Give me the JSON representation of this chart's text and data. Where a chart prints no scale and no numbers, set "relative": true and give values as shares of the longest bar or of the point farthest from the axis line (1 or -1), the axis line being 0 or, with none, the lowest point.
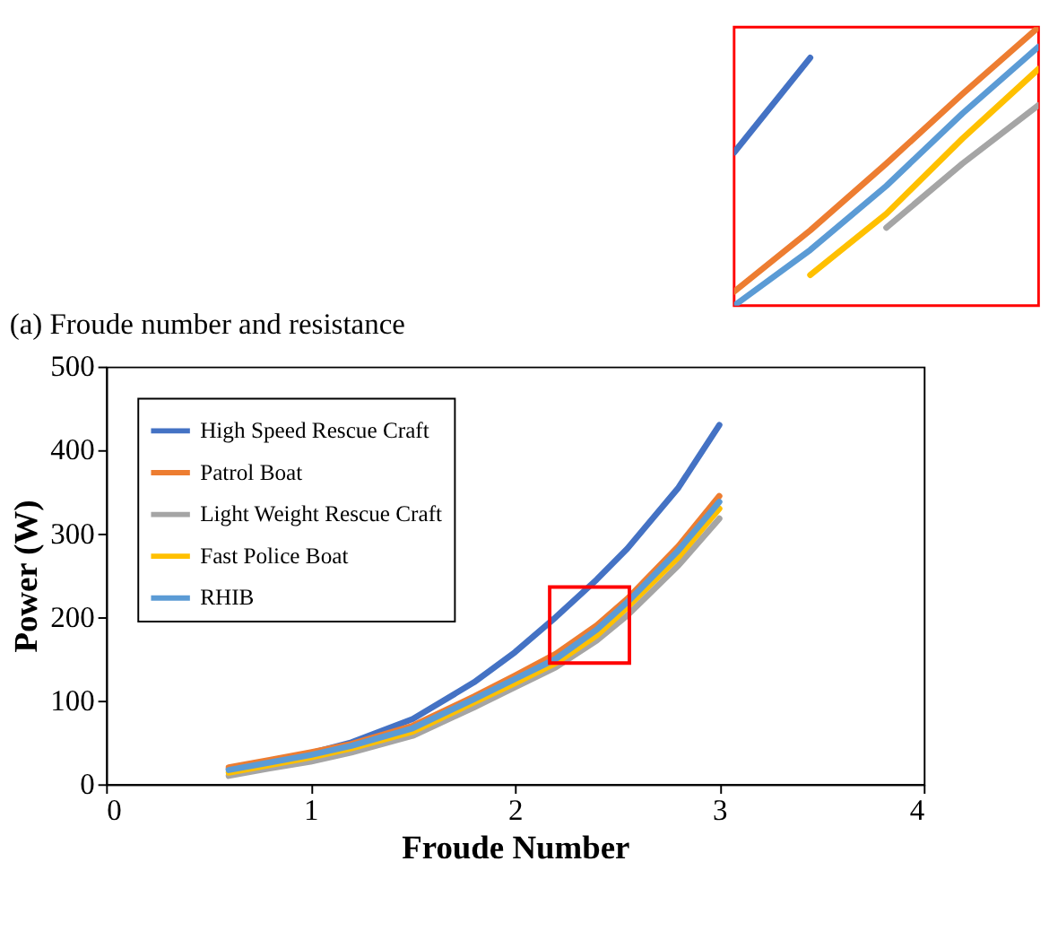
{
  "chart_data": [
    {
      "type": "line",
      "title": "(a) Froude number and resistance",
      "xlabel": "Froude Number",
      "ylabel": "Power (W)",
      "xlim": [
        0,
        4
      ],
      "xticks": [
        0,
        1,
        2,
        3,
        4
      ],
      "ylim": [
        0,
        500
      ],
      "yticks": [
        0,
        100,
        200,
        300,
        400,
        500
      ],
      "grid": false,
      "legend": "top left",
      "marker": "none",
      "line_style": "solid",
      "x": [
        0.6,
        0.8,
        1,
        1.2,
        1.5,
        1.8,
        2,
        2.2,
        2.4,
        2.55,
        2.8,
        3
      ],
      "series": [
        {
          "name": "High Speed Rescue Craft",
          "color": "#4472c4",
          "values": [
            18,
            27,
            37,
            50,
            78,
            122,
            158,
            200,
            245,
            282,
            355,
            430
          ]
        },
        {
          "name": "Patrol Boat",
          "color": "#ed7d31",
          "values": [
            20,
            29,
            38,
            48,
            70,
            105,
            130,
            156,
            190,
            222,
            285,
            345
          ]
        },
        {
          "name": "Light Weight Rescue Craft",
          "color": "#a5a5a5",
          "values": [
            10,
            19,
            27,
            38,
            58,
            92,
            116,
            140,
            172,
            202,
            262,
            318
          ]
        },
        {
          "name": "Fast Police Boat",
          "color": "#ffc000",
          "values": [
            14,
            23,
            32,
            43,
            63,
            98,
            121,
            145,
            178,
            212,
            272,
            330
          ]
        },
        {
          "name": "RHIB",
          "color": "#5b9bd5",
          "values": [
            17,
            26,
            35,
            46,
            67,
            102,
            126,
            150,
            185,
            218,
            280,
            338
          ]
        }
      ]
    },
    {
      "type": "line",
      "relative": true,
      "categories": [
        null,
        null,
        null,
        null,
        null
      ],
      "grid": false,
      "legend": false,
      "marker": "none",
      "line_style": "solid",
      "series": [
        {
          "color": "#4472c4",
          "values": [
            0.55,
            0.89,
            null,
            null,
            null
          ]
        },
        {
          "color": "#ed7d31",
          "values": [
            0.05,
            0.27,
            0.51,
            0.76,
            1
          ]
        },
        {
          "color": "#a5a5a5",
          "values": [
            null,
            null,
            0.28,
            0.51,
            0.72
          ]
        },
        {
          "color": "#ffc000",
          "values": [
            null,
            0.11,
            0.33,
            0.6,
            0.85
          ]
        },
        {
          "color": "#5b9bd5",
          "values": [
            0,
            0.2,
            0.43,
            0.69,
            0.93
          ]
        }
      ]
    }
  ]
}
